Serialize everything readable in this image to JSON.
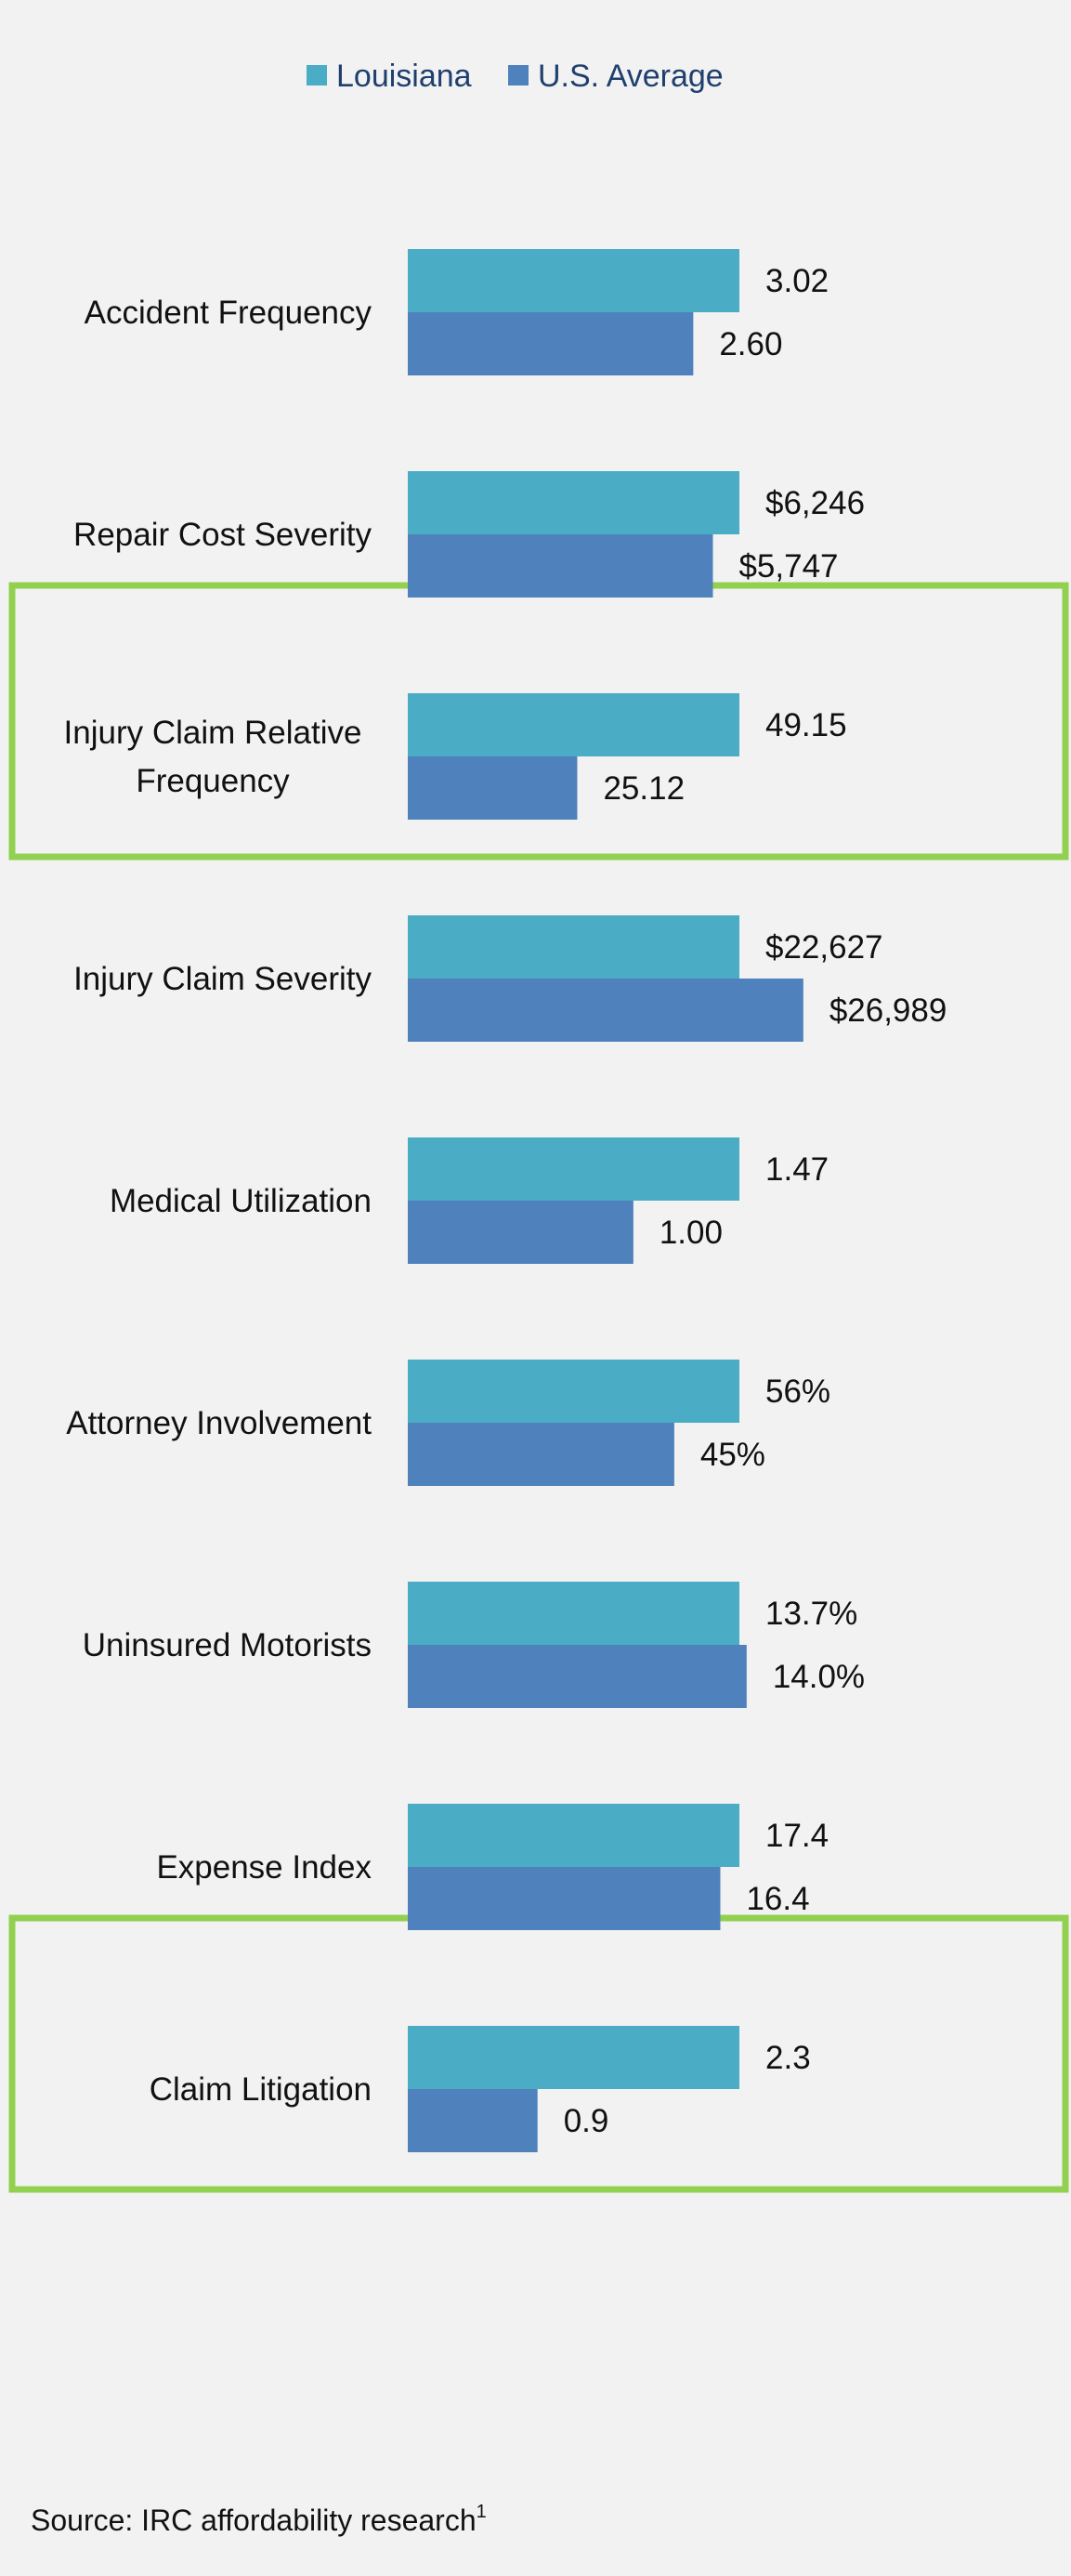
{
  "chart_data": {
    "type": "bar",
    "orientation": "horizontal",
    "legend_position": "top-center",
    "series": [
      {
        "name": "Louisiana",
        "color": "#4bacc6",
        "values": [
          3.02,
          6246,
          49.15,
          22627,
          1.47,
          56,
          13.7,
          17.4,
          2.3
        ],
        "labels": [
          "3.02",
          "$6,246",
          "49.15",
          "$22,627",
          "1.47",
          "56%",
          "13.7%",
          "17.4",
          "2.3"
        ]
      },
      {
        "name": "U.S. Average",
        "color": "#4f81bd",
        "values": [
          2.6,
          5747,
          25.12,
          26989,
          1.0,
          45,
          14.0,
          16.4,
          0.9
        ],
        "labels": [
          "2.60",
          "$5,747",
          "25.12",
          "$26,989",
          "1.00",
          "45%",
          "14.0%",
          "16.4",
          "0.9"
        ]
      }
    ],
    "categories": [
      [
        "Accident Frequency"
      ],
      [
        "Repair Cost Severity"
      ],
      [
        "Injury Claim Relative",
        "Frequency"
      ],
      [
        "Injury Claim Severity"
      ],
      [
        "Medical Utilization"
      ],
      [
        "Attorney Involvement"
      ],
      [
        "Uninsured Motorists"
      ],
      [
        "Expense Index"
      ],
      [
        "Claim Litigation"
      ]
    ],
    "highlighted_categories": [
      2,
      8
    ],
    "highlight_color": "#92d050",
    "grid": false
  },
  "source": {
    "text": "Source: IRC affordability research",
    "superscript": "1"
  }
}
